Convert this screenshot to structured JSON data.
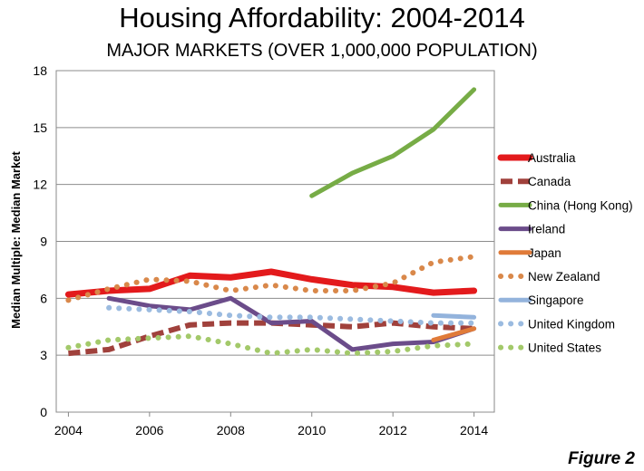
{
  "figure_label": "Figure 2",
  "chart_data": {
    "type": "line",
    "title": "Housing Affordability: 2004-2014",
    "subtitle": "MAJOR MARKETS (OVER 1,000,000 POPULATION)",
    "xlabel": "",
    "ylabel": "Median Multiple: Median Market",
    "x": [
      2004,
      2005,
      2006,
      2007,
      2008,
      2009,
      2010,
      2011,
      2012,
      2013,
      2014
    ],
    "xticks": [
      2004,
      2006,
      2008,
      2010,
      2012,
      2014
    ],
    "yticks": [
      0,
      3,
      6,
      9,
      12,
      15,
      18
    ],
    "xlim": [
      2003.7,
      2014.5
    ],
    "ylim": [
      0,
      18
    ],
    "grid": true,
    "legend_position": "right",
    "series": [
      {
        "name": "Australia",
        "color": "#e31a1c",
        "style": "solid",
        "width": 7,
        "values": [
          6.2,
          6.4,
          6.5,
          7.2,
          7.1,
          7.4,
          7.0,
          6.7,
          6.6,
          6.3,
          6.4
        ]
      },
      {
        "name": "Canada",
        "color": "#a0413c",
        "style": "dash",
        "width": 6,
        "values": [
          3.1,
          3.3,
          4.0,
          4.6,
          4.7,
          4.7,
          4.6,
          4.5,
          4.7,
          4.5,
          4.4
        ]
      },
      {
        "name": "China (Hong Kong)",
        "color": "#77ac46",
        "style": "solid",
        "width": 5,
        "values": [
          null,
          null,
          null,
          null,
          null,
          null,
          11.4,
          12.6,
          13.5,
          14.9,
          17.0
        ]
      },
      {
        "name": "Ireland",
        "color": "#6b4c8a",
        "style": "solid",
        "width": 5,
        "values": [
          null,
          6.0,
          5.6,
          5.4,
          6.0,
          4.7,
          4.8,
          3.3,
          3.6,
          3.7,
          4.4
        ]
      },
      {
        "name": "Japan",
        "color": "#e07b39",
        "style": "solid",
        "width": 5,
        "values": [
          null,
          null,
          null,
          null,
          null,
          null,
          null,
          null,
          null,
          3.8,
          4.4
        ]
      },
      {
        "name": "New Zealand",
        "color": "#d9884a",
        "style": "dot",
        "width": 6,
        "values": [
          5.9,
          6.5,
          7.0,
          6.9,
          6.4,
          6.7,
          6.4,
          6.4,
          6.8,
          7.9,
          8.2
        ]
      },
      {
        "name": "Singapore",
        "color": "#93b3dc",
        "style": "solid",
        "width": 5,
        "values": [
          null,
          null,
          null,
          null,
          null,
          null,
          null,
          null,
          null,
          5.1,
          5.0
        ]
      },
      {
        "name": "United Kingdom",
        "color": "#9bbbe0",
        "style": "dot",
        "width": 6,
        "values": [
          null,
          5.5,
          5.4,
          5.3,
          5.1,
          5.0,
          5.0,
          4.9,
          4.8,
          4.7,
          4.7
        ]
      },
      {
        "name": "United States",
        "color": "#a3c96a",
        "style": "dot",
        "width": 6,
        "values": [
          3.4,
          3.8,
          3.9,
          4.0,
          3.6,
          3.1,
          3.3,
          3.1,
          3.2,
          3.5,
          3.6
        ]
      }
    ]
  }
}
